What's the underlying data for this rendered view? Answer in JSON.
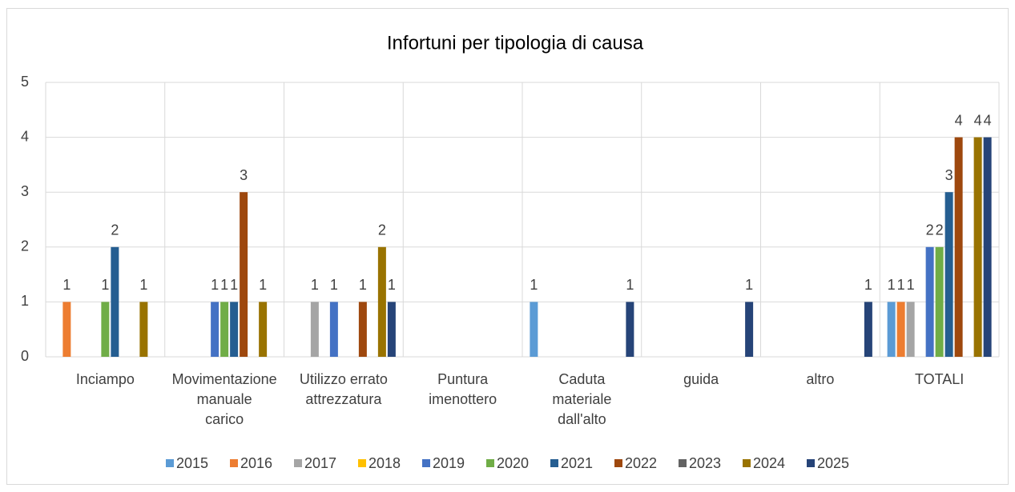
{
  "chart_data": {
    "type": "bar",
    "title": "Infortuni per tipologia di causa",
    "categories": [
      "Inciampo",
      "Movimentazione manuale carico",
      "Utilizzo errato attrezzatura",
      "Puntura imenottero",
      "Caduta materiale dall'alto",
      "guida",
      "altro",
      "TOTALI"
    ],
    "series": [
      {
        "name": "2015",
        "color": "#5b9bd5",
        "values": [
          null,
          null,
          null,
          null,
          1,
          null,
          null,
          1
        ]
      },
      {
        "name": "2016",
        "color": "#ed7d31",
        "values": [
          1,
          null,
          null,
          null,
          null,
          null,
          null,
          1
        ]
      },
      {
        "name": "2017",
        "color": "#a5a5a5",
        "values": [
          null,
          null,
          1,
          null,
          null,
          null,
          null,
          1
        ]
      },
      {
        "name": "2018",
        "color": "#ffc000",
        "values": [
          null,
          null,
          null,
          null,
          null,
          null,
          null,
          null
        ]
      },
      {
        "name": "2019",
        "color": "#4472c4",
        "values": [
          null,
          1,
          1,
          null,
          null,
          null,
          null,
          2
        ]
      },
      {
        "name": "2020",
        "color": "#70ad47",
        "values": [
          1,
          1,
          null,
          null,
          null,
          null,
          null,
          2
        ]
      },
      {
        "name": "2021",
        "color": "#255e91",
        "values": [
          2,
          1,
          null,
          null,
          null,
          null,
          null,
          3
        ]
      },
      {
        "name": "2022",
        "color": "#9e480e",
        "values": [
          null,
          3,
          1,
          null,
          null,
          null,
          null,
          4
        ]
      },
      {
        "name": "2023",
        "color": "#636363",
        "values": [
          null,
          null,
          null,
          null,
          null,
          null,
          null,
          null
        ]
      },
      {
        "name": "2024",
        "color": "#997300",
        "values": [
          1,
          1,
          2,
          null,
          null,
          null,
          null,
          4
        ]
      },
      {
        "name": "2025",
        "color": "#264478",
        "values": [
          null,
          null,
          1,
          null,
          1,
          1,
          1,
          4
        ]
      }
    ],
    "ylim": [
      0,
      5
    ],
    "yticks": [
      0,
      1,
      2,
      3,
      4,
      5
    ],
    "grid": true,
    "legend": "bottom"
  }
}
